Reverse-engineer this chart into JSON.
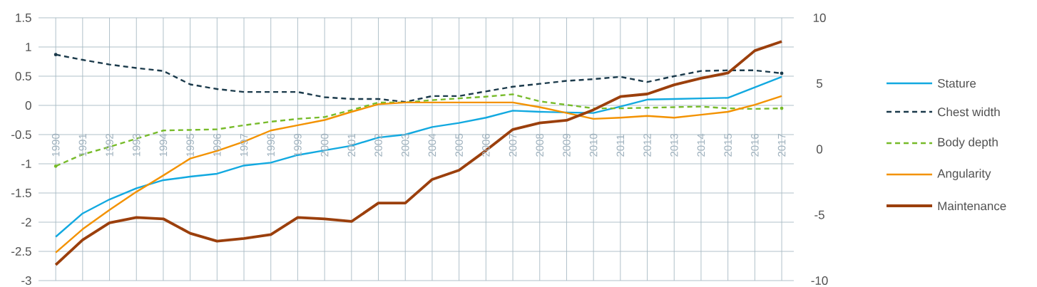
{
  "chart_data": {
    "type": "line",
    "categories": [
      "1990",
      "1991",
      "1992",
      "1993",
      "1994",
      "1995",
      "1996",
      "1997",
      "1998",
      "1999",
      "2000",
      "2001",
      "2002",
      "2003",
      "2004",
      "2005",
      "2006",
      "2007",
      "2008",
      "2009",
      "2010",
      "2011",
      "2012",
      "2013",
      "2014",
      "2015",
      "2016",
      "2017"
    ],
    "ylim": [
      -3,
      1.5
    ],
    "yticks": [
      -3,
      -2.5,
      -2,
      -1.5,
      -1,
      -0.5,
      0,
      0.5,
      1,
      1.5
    ],
    "y2lim": [
      -10,
      10
    ],
    "y2ticks": [
      -10,
      -5,
      0,
      5,
      10
    ],
    "grid": true,
    "legend": "right",
    "series": [
      {
        "name": "Stature",
        "color": "#12a9e0",
        "line_style": "solid",
        "values": [
          -2.25,
          -1.85,
          -1.61,
          -1.42,
          -1.28,
          -1.22,
          -1.17,
          -1.03,
          -0.98,
          -0.85,
          -0.77,
          -0.69,
          -0.55,
          -0.5,
          -0.37,
          -0.3,
          -0.21,
          -0.09,
          -0.11,
          -0.12,
          -0.13,
          -0.02,
          0.1,
          0.11,
          0.12,
          0.13,
          0.31,
          0.49
        ]
      },
      {
        "name": "Chest width",
        "color": "#1b3a4b",
        "line_style": "dashed",
        "values": [
          0.87,
          0.78,
          0.7,
          0.64,
          0.59,
          0.36,
          0.28,
          0.23,
          0.23,
          0.23,
          0.14,
          0.11,
          0.11,
          0.06,
          0.16,
          0.16,
          0.24,
          0.32,
          0.37,
          0.42,
          0.45,
          0.49,
          0.4,
          0.5,
          0.59,
          0.6,
          0.6,
          0.55
        ]
      },
      {
        "name": "Body depth",
        "color": "#77bb2a",
        "line_style": "dashed",
        "values": [
          -1.04,
          -0.84,
          -0.71,
          -0.57,
          -0.43,
          -0.42,
          -0.41,
          -0.34,
          -0.28,
          -0.23,
          -0.2,
          -0.08,
          0.05,
          0.05,
          0.09,
          0.12,
          0.15,
          0.19,
          0.07,
          0.01,
          -0.05,
          -0.05,
          -0.04,
          -0.03,
          -0.02,
          -0.05,
          -0.06,
          -0.05
        ]
      },
      {
        "name": "Angularity",
        "color": "#f39200",
        "line_style": "solid",
        "values": [
          -2.52,
          -2.12,
          -1.79,
          -1.48,
          -1.2,
          -0.91,
          -0.78,
          -0.62,
          -0.43,
          -0.34,
          -0.25,
          -0.11,
          0.02,
          0.05,
          0.05,
          0.05,
          0.05,
          0.05,
          -0.03,
          -0.13,
          -0.23,
          -0.21,
          -0.18,
          -0.21,
          -0.16,
          -0.11,
          0.01,
          0.16
        ]
      },
      {
        "name": "Maintenance",
        "color": "#9b3f0c",
        "line_style": "solid",
        "axis": "y2",
        "values": [
          -8.8,
          -6.9,
          -5.6,
          -5.2,
          -5.3,
          -6.4,
          -7.0,
          -6.8,
          -6.5,
          -5.2,
          -5.3,
          -5.5,
          -4.1,
          -4.1,
          -2.3,
          -1.6,
          -0.1,
          1.5,
          2.0,
          2.2,
          3.0,
          4.0,
          4.2,
          4.9,
          5.4,
          5.8,
          7.5,
          8.2
        ]
      }
    ]
  }
}
